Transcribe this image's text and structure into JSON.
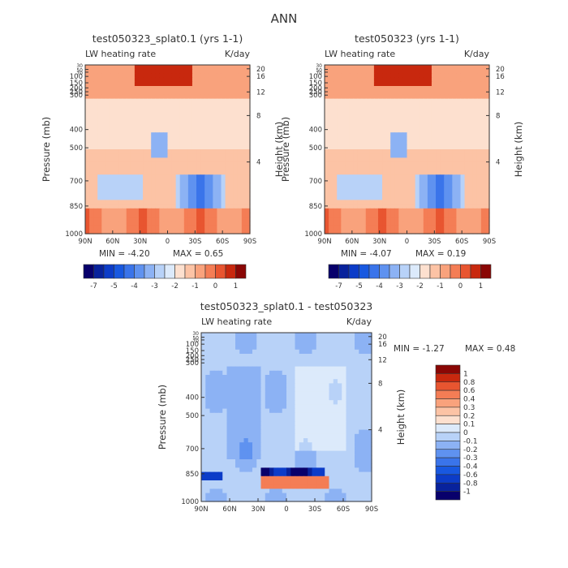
{
  "page_title": "ANN",
  "chart_data": [
    {
      "type": "heatmap",
      "title": "test050323_splat0.1 (yrs 1-1)",
      "subtitle_left": "LW heating rate",
      "subtitle_right": "K/day",
      "xlabel": "",
      "ylabel": "Pressure (mb)",
      "ylabel_right": "Height (km)",
      "x_ticks": [
        "90N",
        "60N",
        "30N",
        "0",
        "30S",
        "60S",
        "90S"
      ],
      "y_ticks": [
        "30",
        "50",
        "70",
        "100",
        "150",
        "200",
        "250",
        "300",
        "400",
        "500",
        "700",
        "850",
        "1000"
      ],
      "y_ticks_right": [
        "20",
        "16",
        "12",
        "8",
        "4"
      ],
      "min_text": "MIN = -4.20",
      "max_text": "MAX = 0.65",
      "colorbar_labels": [
        "-7",
        "-5",
        "-4",
        "-3",
        "-2",
        "-1",
        "0",
        "1"
      ],
      "levels": [
        -7,
        -6,
        -5,
        -4.5,
        -4,
        -3.5,
        -3,
        -2.5,
        -2,
        -1.5,
        -1,
        -0.5,
        0,
        0.5,
        1
      ],
      "min": -4.2,
      "max": 0.65
    },
    {
      "type": "heatmap",
      "title": "test050323 (yrs 1-1)",
      "subtitle_left": "LW heating rate",
      "subtitle_right": "K/day",
      "xlabel": "",
      "ylabel": "Pressure (mb)",
      "ylabel_right": "Height (km)",
      "x_ticks": [
        "90N",
        "60N",
        "30N",
        "0",
        "30S",
        "60S",
        "90S"
      ],
      "y_ticks": [
        "30",
        "50",
        "70",
        "100",
        "150",
        "200",
        "250",
        "300",
        "400",
        "500",
        "700",
        "850",
        "1000"
      ],
      "y_ticks_right": [
        "20",
        "16",
        "12",
        "8",
        "4"
      ],
      "min_text": "MIN = -4.07",
      "max_text": "MAX = 0.19",
      "colorbar_labels": [
        "-7",
        "-5",
        "-4",
        "-3",
        "-2",
        "-1",
        "0",
        "1"
      ],
      "levels": [
        -7,
        -6,
        -5,
        -4.5,
        -4,
        -3.5,
        -3,
        -2.5,
        -2,
        -1.5,
        -1,
        -0.5,
        0,
        0.5,
        1
      ],
      "min": -4.07,
      "max": 0.19
    },
    {
      "type": "heatmap",
      "title": "test050323_splat0.1 - test050323",
      "subtitle_left": "LW heating rate",
      "subtitle_right": "K/day",
      "xlabel": "",
      "ylabel": "Pressure (mb)",
      "ylabel_right": "Height (km)",
      "x_ticks": [
        "90N",
        "60N",
        "30N",
        "0",
        "30S",
        "60S",
        "90S"
      ],
      "y_ticks": [
        "30",
        "50",
        "70",
        "100",
        "150",
        "200",
        "250",
        "300",
        "400",
        "500",
        "700",
        "850",
        "1000"
      ],
      "y_ticks_right": [
        "20",
        "16",
        "12",
        "8",
        "4"
      ],
      "min_text": "MIN = -1.27",
      "max_text": "MAX = 0.48",
      "colorbar_labels": [
        "1",
        "0.8",
        "0.6",
        "0.4",
        "0.3",
        "0.2",
        "0.1",
        "0",
        "-0.1",
        "-0.2",
        "-0.3",
        "-0.4",
        "-0.6",
        "-0.8",
        "-1"
      ],
      "min": -1.27,
      "max": 0.48
    }
  ],
  "colors": {
    "background": "#ffffff",
    "text": "#333333",
    "scale": [
      "#08006b",
      "#08229c",
      "#0c3cc8",
      "#1858e0",
      "#3a74ea",
      "#5f92f0",
      "#8cb2f4",
      "#b8d2f8",
      "#dceafb",
      "#fde0cf",
      "#fcc3a5",
      "#f9a27c",
      "#f47d55",
      "#e85530",
      "#c8280e",
      "#8a0705"
    ]
  }
}
